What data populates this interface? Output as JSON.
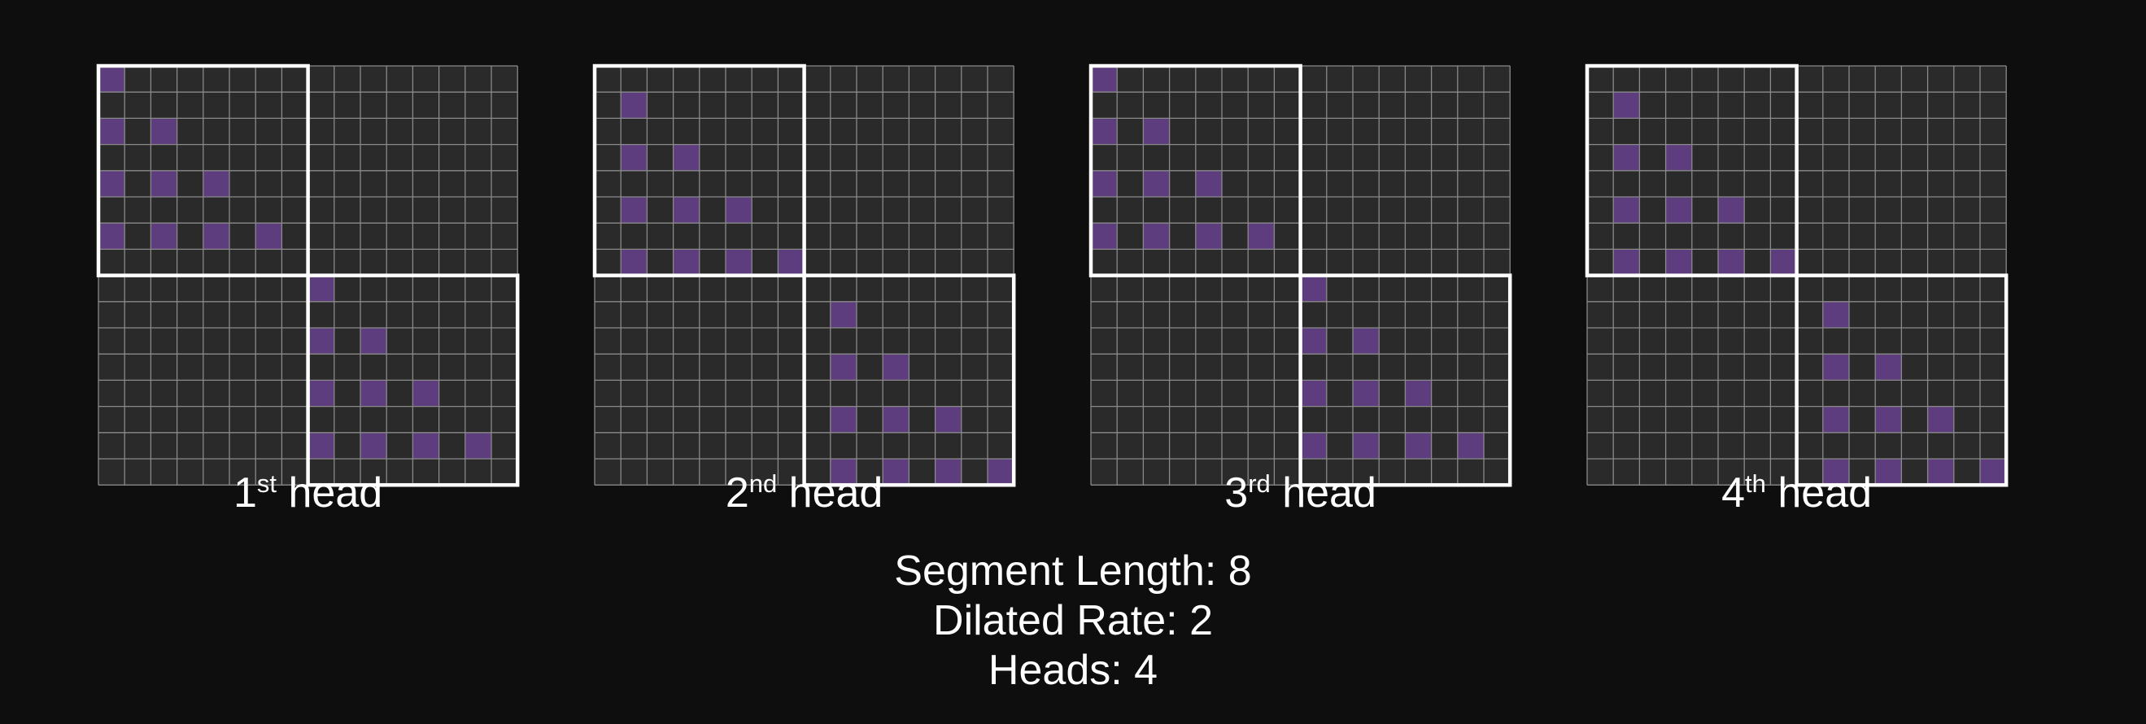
{
  "heads": [
    {
      "number": "1",
      "suffix": "st",
      "word": "head",
      "offset": 0
    },
    {
      "number": "2",
      "suffix": "nd",
      "word": "head",
      "offset": 1
    },
    {
      "number": "3",
      "suffix": "rd",
      "word": "head",
      "offset": 0
    },
    {
      "number": "4",
      "suffix": "th",
      "word": "head",
      "offset": 1
    }
  ],
  "params": {
    "segment_length": "Segment Length: 8",
    "dilated_rate": "Dilated Rate: 2",
    "heads": "Heads: 4"
  },
  "colors": {
    "background": "#0e0e0e",
    "cell": "#2a2a2a",
    "grid_line": "#8a8a8a",
    "active": "#5e3d7e",
    "segment_border": "#ffffff"
  }
}
